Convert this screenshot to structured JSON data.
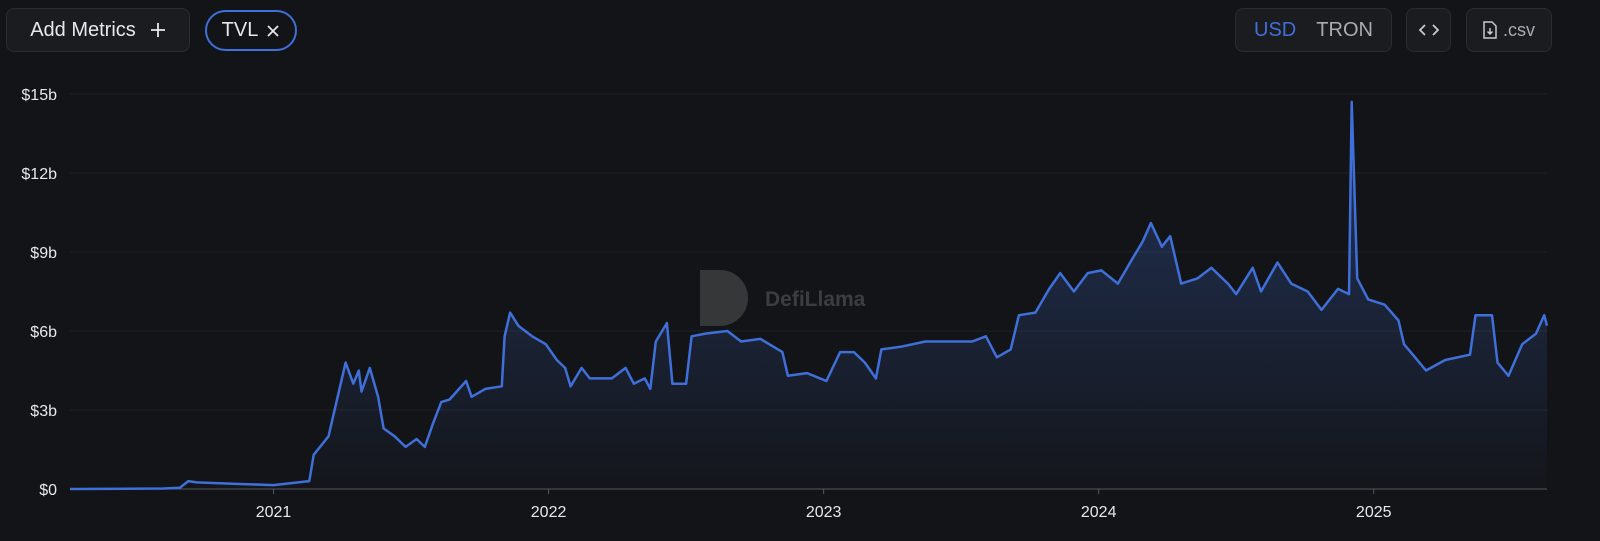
{
  "ui": {
    "add_metrics": "Add Metrics",
    "currencies": [
      "USD",
      "TRON"
    ],
    "csv": ".csv",
    "watermark": "DefiLlama"
  },
  "chart_data": {
    "type": "line",
    "xlim": [
      2020.26,
      2025.63
    ],
    "xticks": [
      2021,
      2022,
      2023,
      2024,
      2025
    ],
    "ylim": [
      0,
      15
    ],
    "yticks": [
      {
        "value": 0,
        "label": "$0"
      },
      {
        "value": 3,
        "label": "$3b"
      },
      {
        "value": 6,
        "label": "$6b"
      },
      {
        "value": 9,
        "label": "$9b"
      },
      {
        "value": 12,
        "label": "$12b"
      },
      {
        "value": 15,
        "label": "$15b"
      }
    ],
    "grid": true,
    "series": [
      {
        "name": "TVL",
        "color": "#3f6fd8",
        "x": [
          2020.26,
          2020.6,
          2020.66,
          2020.69,
          2020.72,
          2020.85,
          2021.0,
          2021.13,
          2021.146,
          2021.2,
          2021.262,
          2021.29,
          2021.31,
          2021.32,
          2021.35,
          2021.38,
          2021.4,
          2021.44,
          2021.48,
          2021.52,
          2021.55,
          2021.58,
          2021.61,
          2021.64,
          2021.7,
          2021.72,
          2021.77,
          2021.83,
          2021.84,
          2021.86,
          2021.89,
          2021.94,
          2021.99,
          2022.03,
          2022.06,
          2022.08,
          2022.12,
          2022.15,
          2022.23,
          2022.28,
          2022.31,
          2022.35,
          2022.37,
          2022.39,
          2022.43,
          2022.45,
          2022.5,
          2022.52,
          2022.57,
          2022.65,
          2022.7,
          2022.77,
          2022.85,
          2022.87,
          2022.94,
          2023.01,
          2023.06,
          2023.11,
          2023.15,
          2023.19,
          2023.21,
          2023.28,
          2023.37,
          2023.45,
          2023.54,
          2023.59,
          2023.63,
          2023.68,
          2023.71,
          2023.77,
          2023.82,
          2023.86,
          2023.91,
          2023.96,
          2024.01,
          2024.07,
          2024.12,
          2024.16,
          2024.19,
          2024.23,
          2024.26,
          2024.3,
          2024.36,
          2024.41,
          2024.47,
          2024.5,
          2024.56,
          2024.59,
          2024.65,
          2024.7,
          2024.76,
          2024.81,
          2024.87,
          2024.91,
          2024.92,
          2024.94,
          2024.98,
          2025.04,
          2025.09,
          2025.11,
          2025.15,
          2025.19,
          2025.26,
          2025.35,
          2025.37,
          2025.43,
          2025.45,
          2025.49,
          2025.54,
          2025.59,
          2025.62,
          2025.63
        ],
        "values": [
          0,
          0.02,
          0.05,
          0.3,
          0.25,
          0.2,
          0.15,
          0.3,
          1.3,
          2.0,
          4.8,
          4.0,
          4.5,
          3.7,
          4.6,
          3.5,
          2.3,
          2.0,
          1.6,
          1.9,
          1.6,
          2.5,
          3.3,
          3.4,
          4.1,
          3.5,
          3.8,
          3.9,
          5.8,
          6.7,
          6.2,
          5.8,
          5.5,
          4.9,
          4.6,
          3.9,
          4.6,
          4.2,
          4.2,
          4.6,
          4.0,
          4.2,
          3.8,
          5.6,
          6.3,
          4.0,
          4.0,
          5.8,
          5.9,
          6.0,
          5.6,
          5.7,
          5.2,
          4.3,
          4.4,
          4.1,
          5.2,
          5.2,
          4.8,
          4.2,
          5.3,
          5.4,
          5.6,
          5.6,
          5.6,
          5.8,
          5.0,
          5.3,
          6.6,
          6.7,
          7.6,
          8.2,
          7.5,
          8.2,
          8.3,
          7.8,
          8.7,
          9.4,
          10.1,
          9.2,
          9.6,
          7.8,
          8.0,
          8.4,
          7.8,
          7.4,
          8.4,
          7.5,
          8.6,
          7.8,
          7.5,
          6.8,
          7.6,
          7.4,
          14.7,
          8.0,
          7.2,
          7.0,
          6.4,
          5.5,
          5.0,
          4.5,
          4.9,
          5.1,
          6.6,
          6.6,
          4.8,
          4.3,
          5.5,
          5.9,
          6.6,
          6.2
        ]
      }
    ]
  }
}
